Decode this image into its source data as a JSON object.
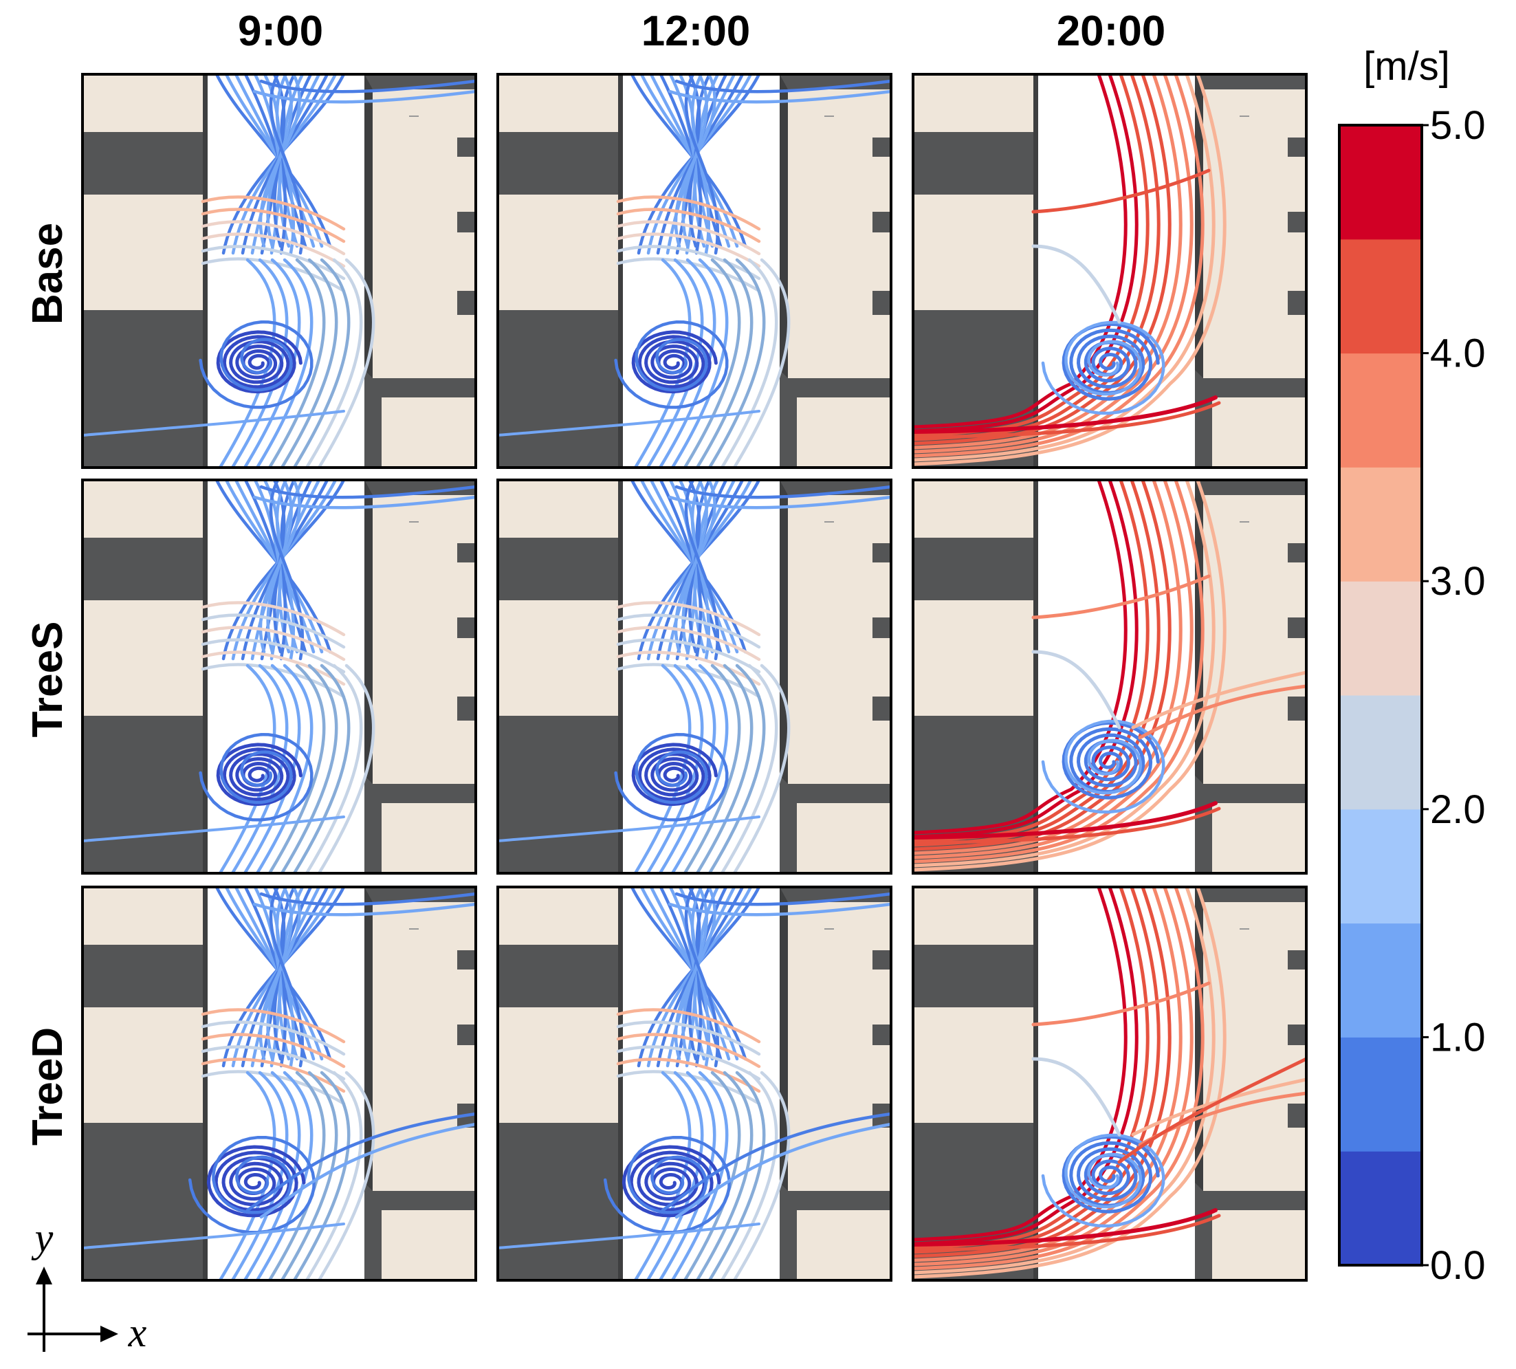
{
  "columns": [
    "9:00",
    "12:00",
    "20:00"
  ],
  "rows": [
    "Base",
    "TreeS",
    "TreeD"
  ],
  "colorbar": {
    "unit": "[m/s]",
    "ticks": [
      "0.0",
      "1.0",
      "2.0",
      "3.0",
      "4.0",
      "5.0"
    ],
    "min": 0,
    "max": 5,
    "bands": [
      "#3349c5",
      "#4a7de5",
      "#73a6f5",
      "#a2c7fb",
      "#c6d4e6",
      "#eed3c9",
      "#f8b396",
      "#f5866a",
      "#e7523f",
      "#d10025"
    ]
  },
  "axes": {
    "x": "x",
    "y": "y"
  },
  "colors": {
    "building_roof": "#efe6da",
    "building_wall": "#545556",
    "ground": "#ffffff"
  }
}
